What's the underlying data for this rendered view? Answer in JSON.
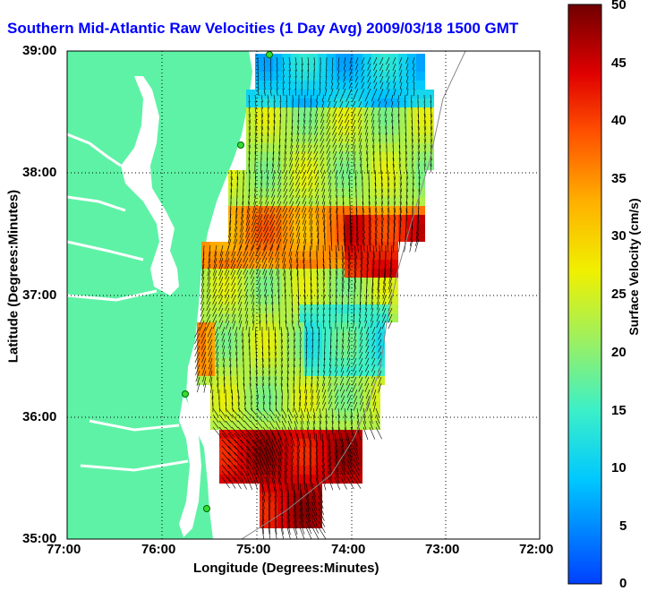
{
  "title": "Southern Mid-Atlantic Raw Velocities (1 Day Avg) 2009/03/18 1500 GMT",
  "x_axis": {
    "label": "Longitude (Degrees:Minutes)",
    "ticks": [
      "77:00",
      "76:00",
      "75:00",
      "74:00",
      "73:00",
      "72:00"
    ]
  },
  "y_axis": {
    "label": "Latitude (Degrees:Minutes)",
    "ticks": [
      "39:00",
      "38:00",
      "37:00",
      "36:00",
      "35:00"
    ]
  },
  "colorbar": {
    "label": "Surface Velocity (cm/s)",
    "ticks": [
      "50",
      "45",
      "40",
      "35",
      "30",
      "25",
      "20",
      "15",
      "10",
      "5",
      "0"
    ],
    "min": 0,
    "max": 50
  },
  "colors": {
    "land": "#5ef2a6",
    "water": "#ffffff",
    "title": "#0000ff",
    "station": "#33dd33"
  }
}
